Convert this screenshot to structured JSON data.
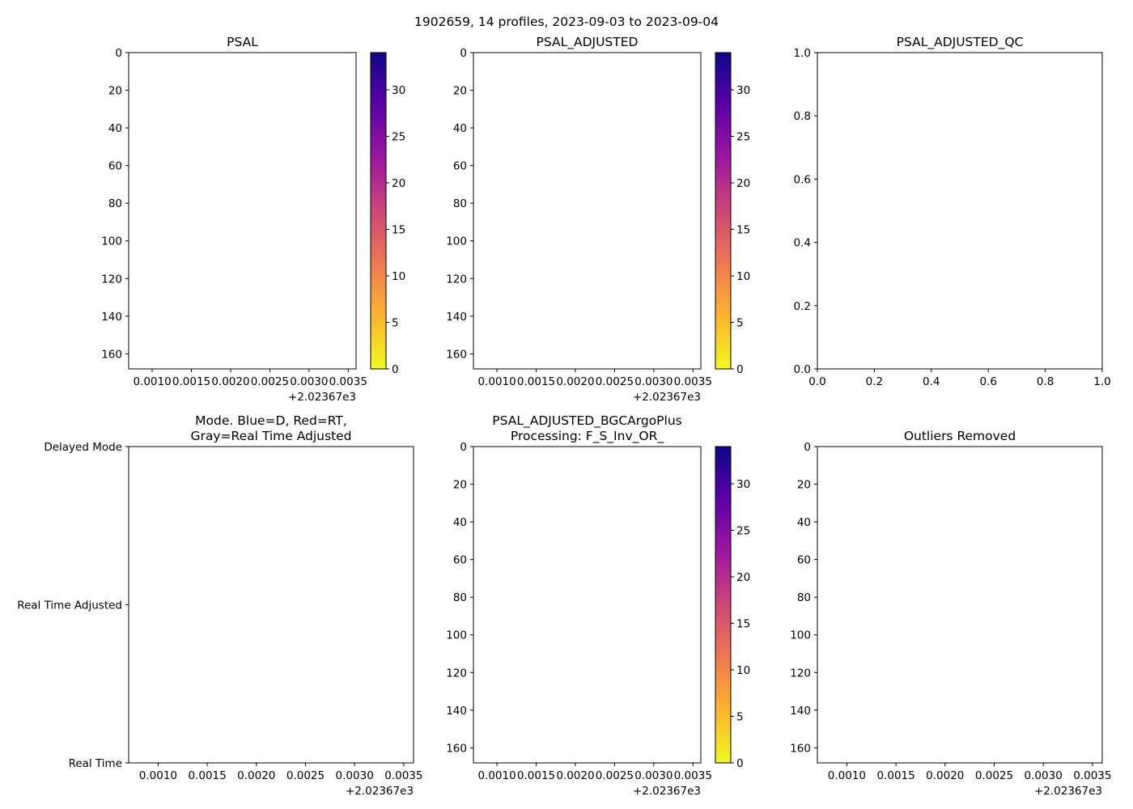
{
  "figure": {
    "suptitle": "1902659, 14 profiles, 2023-09-03 to 2023-09-04"
  },
  "colormap": {
    "name": "plasma_r",
    "stops": [
      "#f0f921",
      "#fdb42f",
      "#ed7953",
      "#cc4778",
      "#9c179e",
      "#5c01a6",
      "#0d0887"
    ]
  },
  "chart_data": [
    {
      "id": "psal",
      "type": "heatmap",
      "title": "PSAL",
      "xlim": [
        2023.6707,
        2023.6736
      ],
      "xticks": [
        "0.0010",
        "0.0015",
        "0.0020",
        "0.0025",
        "0.0030",
        "0.0035"
      ],
      "x_offset_label": "+2.02367e3",
      "ylim": [
        168,
        0
      ],
      "yticks": [
        "0",
        "20",
        "40",
        "60",
        "80",
        "100",
        "120",
        "140",
        "160"
      ],
      "colorbar": {
        "range": [
          0,
          34
        ],
        "ticks": [
          "0",
          "5",
          "10",
          "15",
          "20",
          "25",
          "30"
        ]
      },
      "values": []
    },
    {
      "id": "psal-adjusted",
      "type": "heatmap",
      "title": "PSAL_ADJUSTED",
      "xlim": [
        2023.6707,
        2023.6736
      ],
      "xticks": [
        "0.0010",
        "0.0015",
        "0.0020",
        "0.0025",
        "0.0030",
        "0.0035"
      ],
      "x_offset_label": "+2.02367e3",
      "ylim": [
        168,
        0
      ],
      "yticks": [
        "0",
        "20",
        "40",
        "60",
        "80",
        "100",
        "120",
        "140",
        "160"
      ],
      "colorbar": {
        "range": [
          0,
          34
        ],
        "ticks": [
          "0",
          "5",
          "10",
          "15",
          "20",
          "25",
          "30"
        ]
      },
      "values": []
    },
    {
      "id": "psal-adjusted-qc",
      "type": "scatter",
      "title": "PSAL_ADJUSTED_QC",
      "xlim": [
        0,
        1
      ],
      "xticks": [
        "0.0",
        "0.2",
        "0.4",
        "0.6",
        "0.8",
        "1.0"
      ],
      "ylim": [
        0,
        1
      ],
      "yticks": [
        "0.0",
        "0.2",
        "0.4",
        "0.6",
        "0.8",
        "1.0"
      ],
      "values": []
    },
    {
      "id": "mode",
      "type": "scatter",
      "title": "Mode. Blue=D, Red=RT,",
      "title_line2": "Gray=Real Time Adjusted",
      "xlim": [
        2023.6707,
        2023.6736
      ],
      "xticks": [
        "0.0010",
        "0.0015",
        "0.0020",
        "0.0025",
        "0.0030",
        "0.0035"
      ],
      "x_offset_label": "+2.02367e3",
      "ycategories": [
        "Real Time",
        "Real Time Adjusted",
        "Delayed Mode"
      ],
      "values": []
    },
    {
      "id": "bgc",
      "type": "heatmap",
      "title": "PSAL_ADJUSTED_BGCArgoPlus",
      "title_line2": "Processing: F_S_Inv_OR_",
      "xlim": [
        2023.6707,
        2023.6736
      ],
      "xticks": [
        "0.0010",
        "0.0015",
        "0.0020",
        "0.0025",
        "0.0030",
        "0.0035"
      ],
      "x_offset_label": "+2.02367e3",
      "ylim": [
        168,
        0
      ],
      "yticks": [
        "0",
        "20",
        "40",
        "60",
        "80",
        "100",
        "120",
        "140",
        "160"
      ],
      "colorbar": {
        "range": [
          0,
          34
        ],
        "ticks": [
          "0",
          "5",
          "10",
          "15",
          "20",
          "25",
          "30"
        ]
      },
      "values": []
    },
    {
      "id": "outliers",
      "type": "scatter",
      "title": "Outliers Removed",
      "xlim": [
        2023.6707,
        2023.6736
      ],
      "xticks": [
        "0.0010",
        "0.0015",
        "0.0020",
        "0.0025",
        "0.0030",
        "0.0035"
      ],
      "x_offset_label": "+2.02367e3",
      "ylim": [
        168,
        0
      ],
      "yticks": [
        "0",
        "20",
        "40",
        "60",
        "80",
        "100",
        "120",
        "140",
        "160"
      ],
      "values": []
    }
  ]
}
